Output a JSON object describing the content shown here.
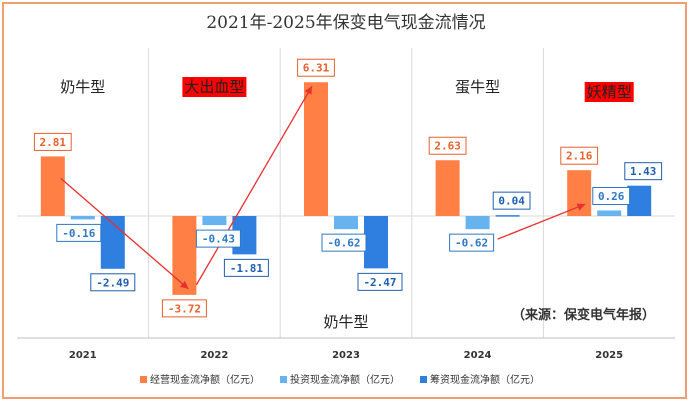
{
  "chart_data": {
    "type": "bar",
    "title": "2021年-2025年保变电气现金流情况",
    "categories": [
      "2021",
      "2022",
      "2023",
      "2024",
      "2025"
    ],
    "series": [
      {
        "name": "经营现金流净额（亿元）",
        "color": "#ff7f45",
        "label_color": "#e8602c",
        "values": [
          2.81,
          -3.72,
          6.31,
          2.63,
          2.16
        ]
      },
      {
        "name": "投资现金流净额（亿元）",
        "color": "#66b3f0",
        "label_color": "#2f78c4",
        "values": [
          -0.16,
          -0.43,
          -0.62,
          -0.62,
          0.26
        ]
      },
      {
        "name": "筹资现金流净额（亿元）",
        "color": "#2f7fe0",
        "label_color": "#1f5fb0",
        "values": [
          -2.49,
          -1.81,
          -2.47,
          0.04,
          1.43
        ]
      }
    ],
    "value_labels": [
      [
        "2.81",
        "-0.16",
        "-2.49"
      ],
      [
        "-3.72",
        "-0.43",
        "-1.81"
      ],
      [
        "6.31",
        "-0.62",
        "-2.47"
      ],
      [
        "2.63",
        "-0.62",
        "0.04"
      ],
      [
        "2.16",
        "0.26",
        "1.43"
      ]
    ],
    "annotations": {
      "types": [
        {
          "text": "奶牛型",
          "highlight": false
        },
        {
          "text": "大出血型",
          "highlight": true
        },
        {
          "text": "奶牛型",
          "highlight": false
        },
        {
          "text": "蛋牛型",
          "highlight": false
        },
        {
          "text": "妖精型",
          "highlight": true
        }
      ],
      "extra_type_2023": "奶牛型",
      "source": "（来源：保变电气年报）"
    },
    "grid": true,
    "legend_position": "bottom",
    "highlight_color": "#ff0000",
    "arrow_color": "#e83030"
  }
}
